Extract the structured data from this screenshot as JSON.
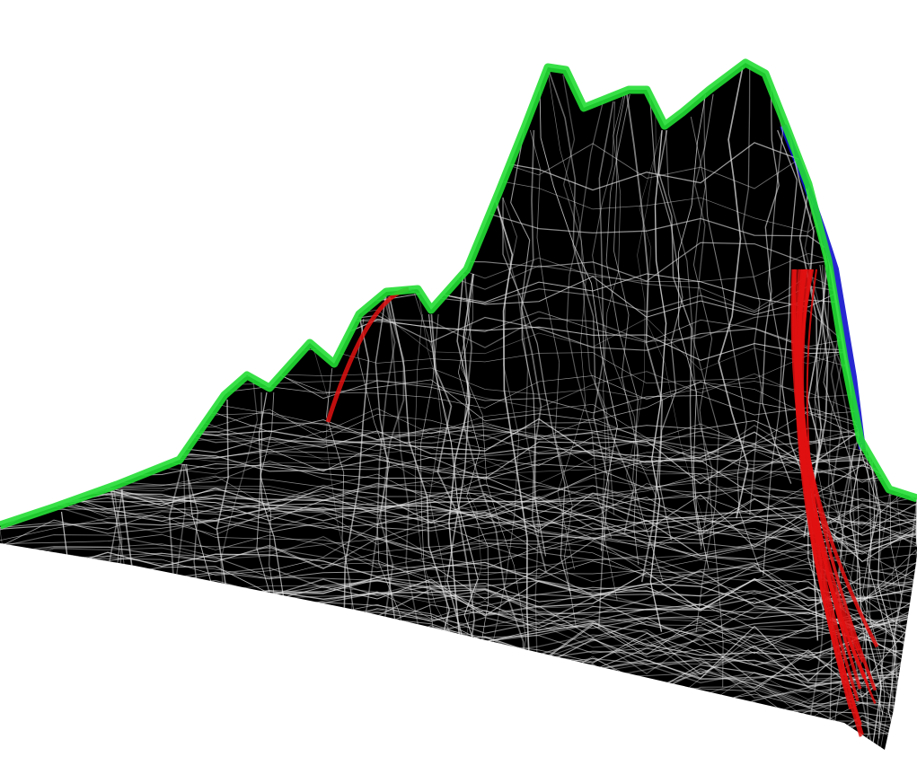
{
  "render": {
    "background_color": "#ffffff",
    "terrain_fill_color": "#000000",
    "wireframe_color": "#e6e6e6",
    "ridge_color": "#22dd33",
    "cliff_color": "#e01010",
    "side_color": "#1010cc"
  }
}
